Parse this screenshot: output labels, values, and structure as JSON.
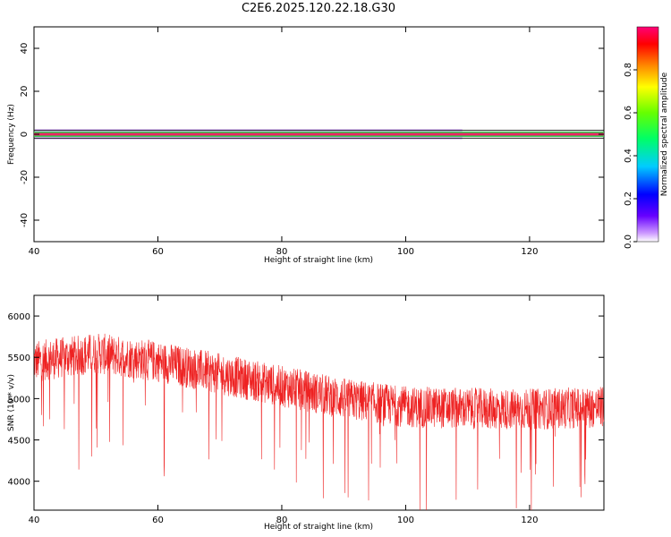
{
  "title": "C2E6.2025.120.22.18.G30",
  "chart_data": [
    {
      "type": "heatmap",
      "xlabel": "Height of straight line (km)",
      "ylabel": "Frequency (Hz)",
      "xlim": [
        40,
        132
      ],
      "ylim": [
        -50,
        50
      ],
      "x_ticks": [
        "40",
        "60",
        "80",
        "100",
        "120"
      ],
      "y_ticks": [
        "40",
        "20",
        "0",
        "-20",
        "-40"
      ],
      "signal_band_hz": [
        -0.8,
        0.8
      ],
      "spread_band_hz": [
        -2.5,
        2.5
      ],
      "colorbar": {
        "label": "Normalized spectral amplitude",
        "ticks": [
          "0.0",
          "0.2",
          "0.4",
          "0.6",
          "0.8"
        ],
        "range": [
          0,
          1
        ]
      }
    },
    {
      "type": "line",
      "xlabel": "Height of straight line (km)",
      "ylabel": "SNR (10 * v/v)",
      "xlim": [
        40,
        132
      ],
      "ylim": [
        3650,
        6250
      ],
      "x_ticks": [
        "40",
        "60",
        "80",
        "100",
        "120"
      ],
      "y_ticks": [
        "6000",
        "5500",
        "5000",
        "4500",
        "4000"
      ],
      "color": "#ee2222",
      "trend": {
        "x": [
          40,
          50,
          60,
          70,
          80,
          90,
          100,
          110,
          120,
          132
        ],
        "y": [
          5450,
          5550,
          5450,
          5300,
          5150,
          5000,
          4900,
          4880,
          4870,
          4900
        ]
      },
      "noise_amplitude": 250
    }
  ]
}
